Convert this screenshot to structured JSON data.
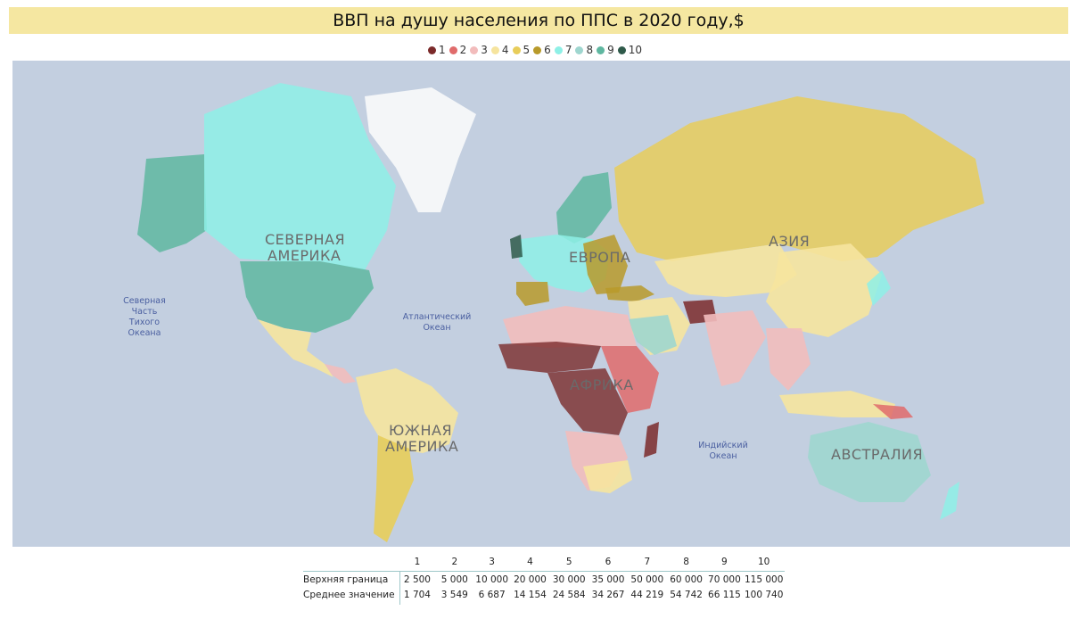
{
  "title": "ВВП на душу населения по ППС в 2020 году,$",
  "legend": [
    {
      "label": "1",
      "color": "#7b2a2a"
    },
    {
      "label": "2",
      "color": "#e06b6b"
    },
    {
      "label": "3",
      "color": "#f2bcbc"
    },
    {
      "label": "4",
      "color": "#f6e49e"
    },
    {
      "label": "5",
      "color": "#e8cd5a"
    },
    {
      "label": "6",
      "color": "#b89a2a"
    },
    {
      "label": "7",
      "color": "#8ef0e6"
    },
    {
      "label": "8",
      "color": "#9fd6cf"
    },
    {
      "label": "9",
      "color": "#5fb7a0"
    },
    {
      "label": "10",
      "color": "#2f5a4a"
    }
  ],
  "map": {
    "regions": {
      "north_america": [
        "СЕВЕРНАЯ",
        "АМЕРИКА"
      ],
      "south_america": [
        "ЮЖНАЯ",
        "АМЕРИКА"
      ],
      "europe": "ЕВРОПА",
      "asia": "АЗИЯ",
      "africa": "АФРИКА",
      "australia": "АВСТРАЛИЯ"
    },
    "oceans": {
      "north_pacific": [
        "Северная",
        "Часть",
        "Тихого",
        "Океана"
      ],
      "atlantic": [
        "Атлантический",
        "Океан"
      ],
      "indian": [
        "Индийский",
        "Океан"
      ]
    }
  },
  "bins": {
    "columns": [
      "1",
      "2",
      "3",
      "4",
      "5",
      "6",
      "7",
      "8",
      "9",
      "10"
    ],
    "upper_label": "Верхняя граница",
    "upper": [
      "2 500",
      "5 000",
      "10 000",
      "20 000",
      "30 000",
      "35 000",
      "50 000",
      "60 000",
      "70 000",
      "115 000"
    ],
    "mean_label": "Среднее значение",
    "mean": [
      "1 704",
      "3 549",
      "6 687",
      "14 154",
      "24 584",
      "34 267",
      "44 219",
      "54 742",
      "66 115",
      "100 740"
    ]
  }
}
